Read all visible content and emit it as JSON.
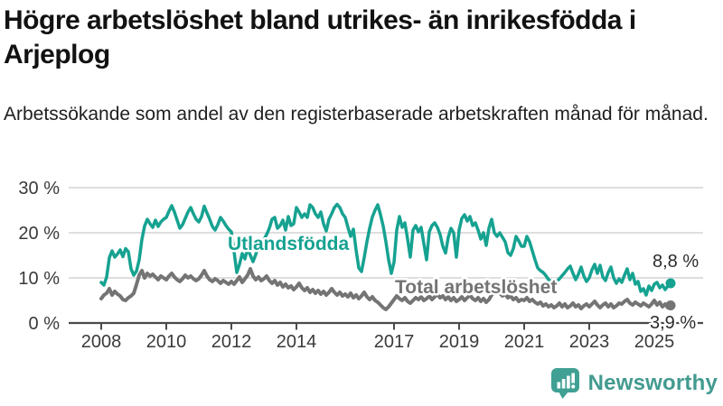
{
  "header": {
    "title": "Högre arbetslöshet bland utrikes- än inrikesfödda i Arjeplog",
    "subtitle": "Arbetssökande som andel av den registerbaserade arbetskraften månad för månad."
  },
  "footer": {
    "brand": "Newsworthy",
    "logo_icon": "bar-chart-speech-bubble-icon"
  },
  "colors": {
    "foreign_line": "#16a291",
    "total_line": "#747474",
    "axis_text": "#3a3a3a",
    "gridline": "#d9d9d9",
    "axis_line": "#4a4a4a",
    "value_label": "#2b2b2b",
    "brand_teal": "#429a90"
  },
  "chart_data": {
    "type": "line",
    "frequency": "monthly",
    "x_start": "2008-01",
    "x_end": "2025-07",
    "x_tick_years": [
      2008,
      2010,
      2012,
      2014,
      2017,
      2019,
      2021,
      2023,
      2025
    ],
    "y_ticks": [
      {
        "value": 30,
        "label": "30 %"
      },
      {
        "value": 20,
        "label": "20 %"
      },
      {
        "value": 10,
        "label": "10 %"
      },
      {
        "value": 0,
        "label": "0 %"
      }
    ],
    "ylim": [
      0,
      32
    ],
    "grid": "horizontal",
    "legend_position": "inline-labels",
    "series": [
      {
        "name": "Utlandsfödda",
        "end_label": "8,8 %",
        "end_value": 8.8,
        "values": [
          9.0,
          8.4,
          10.2,
          14.5,
          16.0,
          14.6,
          15.3,
          16.2,
          14.7,
          16.5,
          15.8,
          12.0,
          10.6,
          11.5,
          14.0,
          18.5,
          21.5,
          23.0,
          22.0,
          21.2,
          22.8,
          21.4,
          22.4,
          23.0,
          23.4,
          24.8,
          26.0,
          24.6,
          22.8,
          21.0,
          21.8,
          23.2,
          24.6,
          25.6,
          24.2,
          23.0,
          22.4,
          23.6,
          25.9,
          24.4,
          23.0,
          21.4,
          20.6,
          21.8,
          23.4,
          22.6,
          21.6,
          20.8,
          20.2,
          15.8,
          11.2,
          13.0,
          15.4,
          14.2,
          16.6,
          15.0,
          13.6,
          15.2,
          16.8,
          18.0,
          18.5,
          19.6,
          21.0,
          23.0,
          23.4,
          21.0,
          21.6,
          22.8,
          20.6,
          23.6,
          21.6,
          22.0,
          25.6,
          24.6,
          23.4,
          24.2,
          23.4,
          26.2,
          25.6,
          24.2,
          23.4,
          24.6,
          22.0,
          20.4,
          23.0,
          24.2,
          25.6,
          26.3,
          25.6,
          24.2,
          23.4,
          21.2,
          19.2,
          20.8,
          16.2,
          12.2,
          11.4,
          14.5,
          18.0,
          21.0,
          23.5,
          25.0,
          26.2,
          24.0,
          21.5,
          18.0,
          14.0,
          11.0,
          13.5,
          20.6,
          23.6,
          21.2,
          22.2,
          18.6,
          14.6,
          20.6,
          21.6,
          20.2,
          21.2,
          17.6,
          14.0,
          20.2,
          21.6,
          22.2,
          21.2,
          19.6,
          17.0,
          15.5,
          19.0,
          21.0,
          20.0,
          14.6,
          20.6,
          23.2,
          24.0,
          22.6,
          23.6,
          21.6,
          22.2,
          20.6,
          18.6,
          20.0,
          17.2,
          21.0,
          23.0,
          20.0,
          19.2,
          20.0,
          19.0,
          18.0,
          15.6,
          15.0,
          16.5,
          19.2,
          18.2,
          17.0,
          17.0,
          19.2,
          18.0,
          16.0,
          14.0,
          12.2,
          11.6,
          11.2,
          10.5,
          9.6,
          9.2,
          9.5,
          9.2,
          9.8,
          10.5,
          11.2,
          12.0,
          12.6,
          11.0,
          9.6,
          10.8,
          12.4,
          10.4,
          9.2,
          10.0,
          11.8,
          13.0,
          11.0,
          12.8,
          10.2,
          9.4,
          11.2,
          12.4,
          10.0,
          8.8,
          9.8,
          9.0,
          10.6,
          12.0,
          9.6,
          11.0,
          8.6,
          9.2,
          7.0,
          7.6,
          6.2,
          8.2,
          7.2,
          8.6,
          9.0,
          7.8,
          8.4,
          7.4,
          8.2,
          8.8
        ]
      },
      {
        "name": "Total arbetslöshet",
        "end_label": "3,9 %",
        "end_value": 3.9,
        "values": [
          5.4,
          6.2,
          6.6,
          7.6,
          6.2,
          7.0,
          6.4,
          6.0,
          5.2,
          5.0,
          5.6,
          6.0,
          6.6,
          8.5,
          10.6,
          11.6,
          10.0,
          11.0,
          10.4,
          10.8,
          10.2,
          9.6,
          10.4,
          10.0,
          9.6,
          10.4,
          11.0,
          10.2,
          9.6,
          9.2,
          9.8,
          10.6,
          10.0,
          10.4,
          9.8,
          9.4,
          9.8,
          10.6,
          11.6,
          10.4,
          9.6,
          9.2,
          9.8,
          9.4,
          8.8,
          9.4,
          9.0,
          8.6,
          9.2,
          8.6,
          9.4,
          10.2,
          9.0,
          9.8,
          10.6,
          12.0,
          10.4,
          9.6,
          10.2,
          9.4,
          9.8,
          10.4,
          9.4,
          8.8,
          9.4,
          8.4,
          9.0,
          8.0,
          8.6,
          7.8,
          8.2,
          7.4,
          8.0,
          8.8,
          7.8,
          7.2,
          7.8,
          6.8,
          7.4,
          6.6,
          7.2,
          6.4,
          7.0,
          6.2,
          6.8,
          7.6,
          6.8,
          6.2,
          6.8,
          6.0,
          6.4,
          5.8,
          6.6,
          5.6,
          6.2,
          5.4,
          6.0,
          6.8,
          5.8,
          5.2,
          5.8,
          5.0,
          4.6,
          4.0,
          3.4,
          3.0,
          3.6,
          4.4,
          5.2,
          6.0,
          5.4,
          5.0,
          5.6,
          4.8,
          4.4,
          5.0,
          5.6,
          5.2,
          5.8,
          5.0,
          5.4,
          6.0,
          5.2,
          5.8,
          6.4,
          5.6,
          6.0,
          5.2,
          5.8,
          5.0,
          5.6,
          4.8,
          5.2,
          5.8,
          5.0,
          5.6,
          6.2,
          5.4,
          5.0,
          5.6,
          4.8,
          5.4,
          4.6,
          5.2,
          6.2,
          6.8,
          7.4,
          6.6,
          6.0,
          6.4,
          5.6,
          6.0,
          5.2,
          5.6,
          4.8,
          5.2,
          5.0,
          5.6,
          4.8,
          5.2,
          4.6,
          4.2,
          4.6,
          3.8,
          4.2,
          3.6,
          4.0,
          3.4,
          3.8,
          4.4,
          3.6,
          4.2,
          3.4,
          3.8,
          4.4,
          3.6,
          4.0,
          3.2,
          3.8,
          4.2,
          3.6,
          4.2,
          4.8,
          4.0,
          3.4,
          4.0,
          4.4,
          3.6,
          4.2,
          3.4,
          3.8,
          4.4,
          4.2,
          4.8,
          5.2,
          4.4,
          4.0,
          4.6,
          4.2,
          3.8,
          4.4,
          4.0,
          3.6,
          4.2,
          5.0,
          4.0,
          4.6,
          3.6,
          4.2,
          3.4,
          3.9
        ]
      }
    ]
  }
}
